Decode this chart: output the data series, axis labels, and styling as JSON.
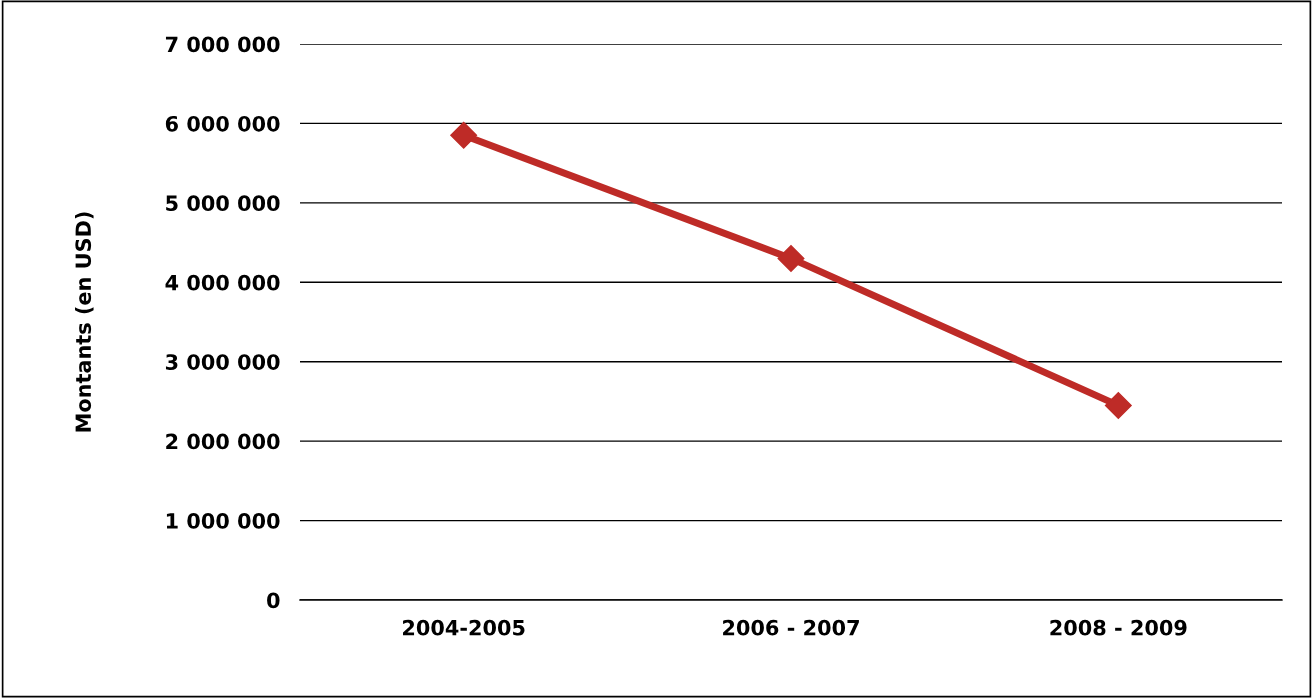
{
  "chart_data": {
    "type": "line",
    "ylabel": "Montants (en USD)",
    "categories": [
      "2004-2005",
      "2006 - 2007",
      "2008 - 2009"
    ],
    "series": [
      {
        "color": "#be2b27",
        "values": [
          5850000,
          4300000,
          2450000
        ]
      }
    ],
    "ylim": [
      0,
      7000000
    ],
    "yticks": [
      {
        "value": 0,
        "label": "0"
      },
      {
        "value": 1000000,
        "label": "1 000 000"
      },
      {
        "value": 2000000,
        "label": "2 000 000"
      },
      {
        "value": 3000000,
        "label": "3 000 000"
      },
      {
        "value": 4000000,
        "label": "4 000 000"
      },
      {
        "value": 5000000,
        "label": "5 000 000"
      },
      {
        "value": 6000000,
        "label": "6 000 000"
      },
      {
        "value": 7000000,
        "label": "7 000 000"
      }
    ],
    "grid": "y",
    "marker": "diamond",
    "line_style": "solid",
    "legend": false
  }
}
